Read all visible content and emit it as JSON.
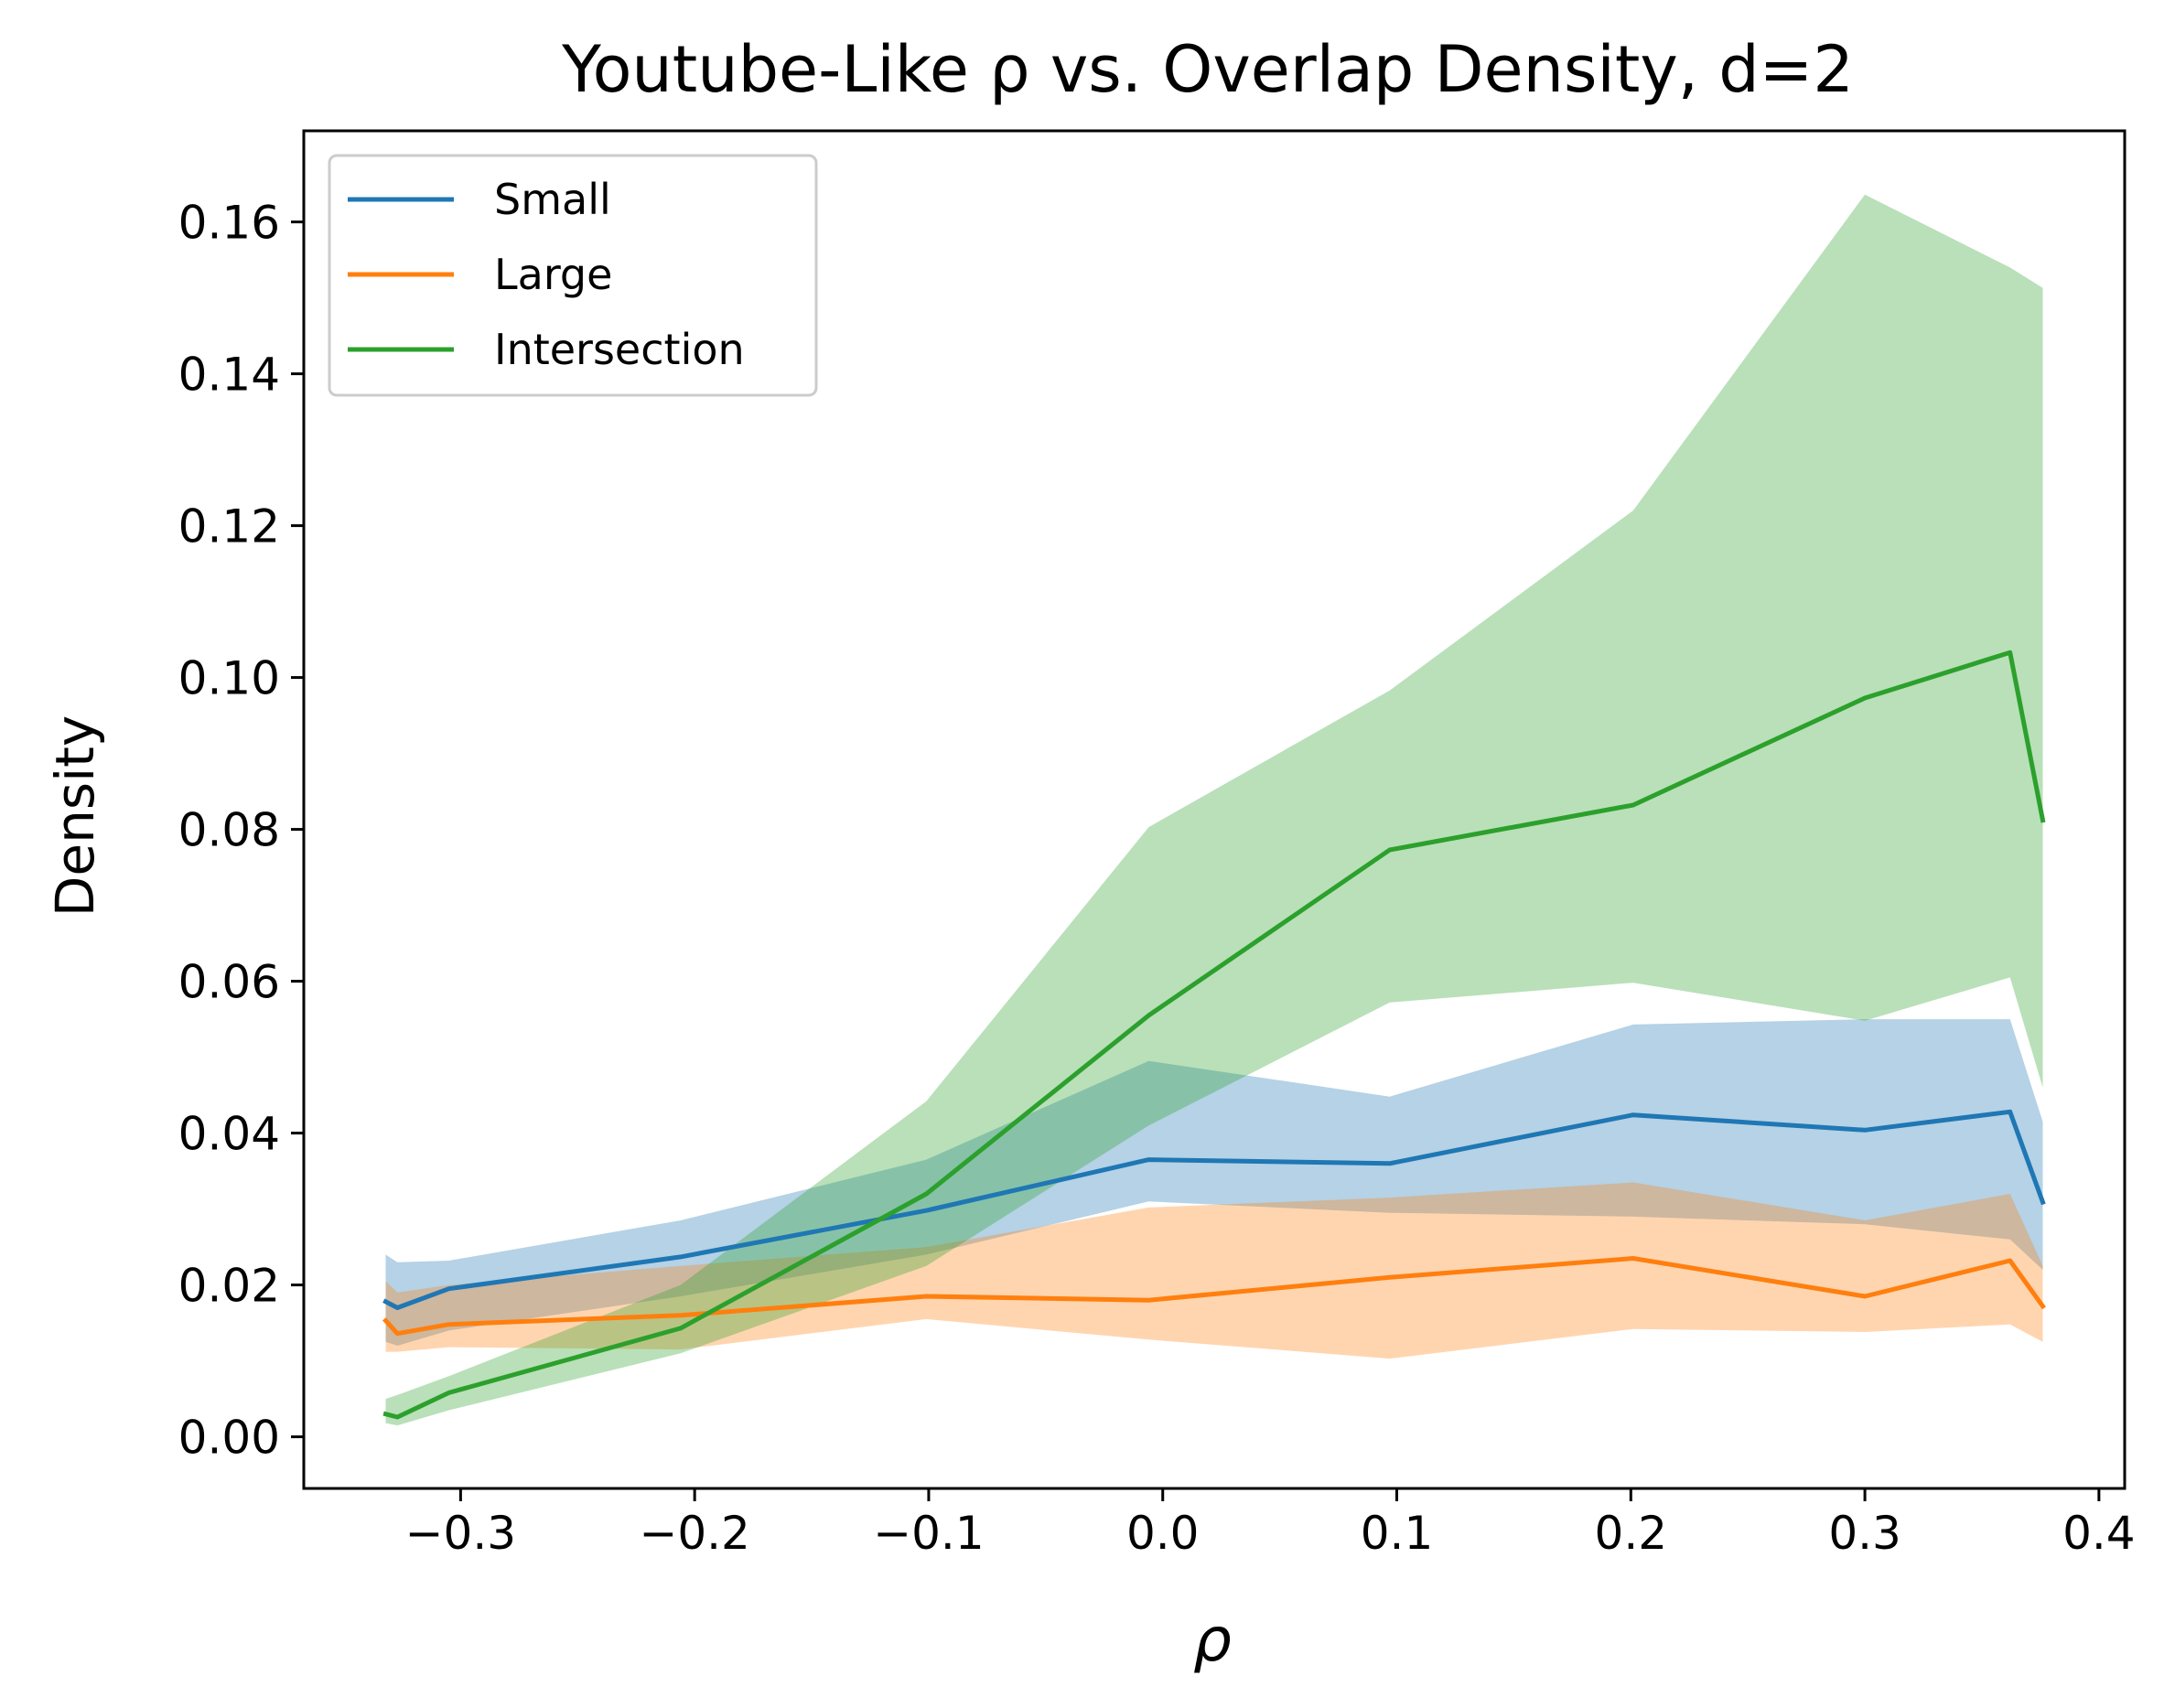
{
  "chart_data": {
    "type": "line",
    "title": "Youtube-Like ρ vs. Overlap Density, d=2",
    "xlabel": "ρ",
    "ylabel": "Density",
    "xlim": [
      -0.367,
      0.411
    ],
    "ylim": [
      -0.0068,
      0.172
    ],
    "xticks": [
      -0.3,
      -0.2,
      -0.1,
      0.0,
      0.1,
      0.2,
      0.3,
      0.4
    ],
    "xtick_labels": [
      "−0.3",
      "−0.2",
      "−0.1",
      "0.0",
      "0.1",
      "0.2",
      "0.3",
      "0.4"
    ],
    "yticks": [
      0.0,
      0.02,
      0.04,
      0.06,
      0.08,
      0.1,
      0.12,
      0.14,
      0.16
    ],
    "ytick_labels": [
      "0.00",
      "0.02",
      "0.04",
      "0.06",
      "0.08",
      "0.10",
      "0.12",
      "0.14",
      "0.16"
    ],
    "grid": false,
    "legend_position": "top-left",
    "series": [
      {
        "name": "Small",
        "color": "#1f77b4",
        "band_color": "#a6c8e2",
        "x": [
          -0.332,
          -0.327,
          -0.305,
          -0.206,
          -0.101,
          -0.006,
          0.097,
          0.201,
          0.3,
          0.362,
          0.376
        ],
        "values": [
          0.0178,
          0.017,
          0.0195,
          0.0237,
          0.0298,
          0.0365,
          0.036,
          0.0424,
          0.0404,
          0.0428,
          0.0309
        ],
        "lower": [
          0.0125,
          0.012,
          0.014,
          0.0185,
          0.024,
          0.031,
          0.0295,
          0.029,
          0.028,
          0.026,
          0.022
        ],
        "upper": [
          0.024,
          0.023,
          0.0232,
          0.0285,
          0.0365,
          0.0495,
          0.0448,
          0.0543,
          0.055,
          0.055,
          0.0415
        ]
      },
      {
        "name": "Large",
        "color": "#ff7f0e",
        "band_color": "#ffc797",
        "x": [
          -0.332,
          -0.327,
          -0.305,
          -0.206,
          -0.101,
          -0.006,
          0.097,
          0.201,
          0.3,
          0.362,
          0.376
        ],
        "values": [
          0.0153,
          0.0136,
          0.0148,
          0.016,
          0.0185,
          0.018,
          0.021,
          0.0235,
          0.0185,
          0.0232,
          0.0172
        ],
        "lower": [
          0.0112,
          0.0112,
          0.0118,
          0.0115,
          0.0155,
          0.0128,
          0.0103,
          0.0142,
          0.0138,
          0.0148,
          0.0125
        ],
        "upper": [
          0.0205,
          0.019,
          0.02,
          0.0225,
          0.025,
          0.0302,
          0.0315,
          0.0335,
          0.0285,
          0.032,
          0.0225
        ]
      },
      {
        "name": "Intersection",
        "color": "#2ca02c",
        "band_color": "#b4ddb4",
        "x": [
          -0.332,
          -0.327,
          -0.305,
          -0.206,
          -0.101,
          -0.006,
          0.097,
          0.201,
          0.3,
          0.362,
          0.376
        ],
        "values": [
          0.003,
          0.0026,
          0.0058,
          0.0143,
          0.032,
          0.0555,
          0.0773,
          0.0832,
          0.0973,
          0.1033,
          0.0812
        ],
        "lower": [
          0.0018,
          0.0015,
          0.0035,
          0.011,
          0.0225,
          0.041,
          0.0572,
          0.0598,
          0.0548,
          0.0605,
          0.046
        ],
        "upper": [
          0.005,
          0.0055,
          0.008,
          0.02,
          0.0442,
          0.0803,
          0.0983,
          0.122,
          0.1636,
          0.154,
          0.1513
        ]
      }
    ]
  }
}
